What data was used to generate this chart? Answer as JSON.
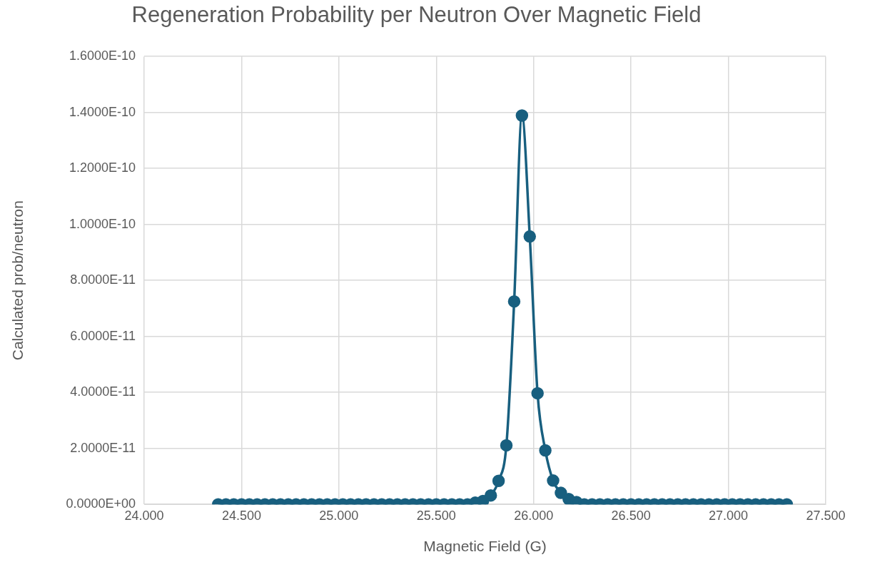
{
  "chart_data": {
    "type": "line",
    "title": "Regeneration Probability per Neutron Over Magnetic Field",
    "xlabel": "Magnetic Field (G)",
    "ylabel": "Calculated prob/neutron",
    "x": [
      24.38,
      24.42,
      24.46,
      24.5,
      24.54,
      24.58,
      24.62,
      24.66,
      24.7,
      24.74,
      24.78,
      24.82,
      24.86,
      24.9,
      24.94,
      24.98,
      25.02,
      25.06,
      25.1,
      25.14,
      25.18,
      25.22,
      25.26,
      25.3,
      25.34,
      25.38,
      25.42,
      25.46,
      25.5,
      25.54,
      25.58,
      25.62,
      25.66,
      25.7,
      25.74,
      25.78,
      25.82,
      25.86,
      25.9,
      25.94,
      25.98,
      26.02,
      26.06,
      26.1,
      26.14,
      26.18,
      26.22,
      26.26,
      26.3,
      26.34,
      26.38,
      26.42,
      26.46,
      26.5,
      26.54,
      26.58,
      26.62,
      26.66,
      26.7,
      26.74,
      26.78,
      26.82,
      26.86,
      26.9,
      26.94,
      26.98,
      27.02,
      27.06,
      27.1,
      27.14,
      27.18,
      27.22,
      27.26,
      27.3
    ],
    "series": [
      {
        "color": "#185f7f",
        "values": [
          0,
          0,
          0,
          0,
          0,
          0,
          0,
          0,
          0,
          0,
          0,
          0,
          0,
          0,
          0,
          0,
          0,
          0,
          0,
          0,
          0,
          0,
          0,
          0,
          0,
          0,
          0,
          0,
          0,
          0,
          0,
          0,
          0,
          6e-13,
          1.2e-12,
          3.2e-12,
          8.4e-12,
          2.11e-11,
          7.25e-11,
          1.389e-10,
          9.57e-11,
          3.97e-11,
          1.93e-11,
          8.5e-12,
          4.1e-12,
          1.9e-12,
          8e-13,
          0,
          0,
          0,
          0,
          0,
          0,
          0,
          0,
          0,
          0,
          0,
          0,
          0,
          0,
          0,
          0,
          0,
          0,
          0,
          0,
          0,
          0,
          0,
          0,
          0,
          0,
          0
        ]
      }
    ],
    "xlim": [
      24,
      27.5
    ],
    "xticks": [
      {
        "value": 24,
        "label": "24.000"
      },
      {
        "value": 24.5,
        "label": "24.500"
      },
      {
        "value": 25,
        "label": "25.000"
      },
      {
        "value": 25.5,
        "label": "25.500"
      },
      {
        "value": 26,
        "label": "26.000"
      },
      {
        "value": 26.5,
        "label": "26.500"
      },
      {
        "value": 27,
        "label": "27.000"
      },
      {
        "value": 27.5,
        "label": "27.500"
      }
    ],
    "ylim": [
      0,
      1.6e-10
    ],
    "yticks": [
      {
        "value": 0,
        "label": "0.0000E+00"
      },
      {
        "value": 2e-11,
        "label": "2.0000E-11"
      },
      {
        "value": 4e-11,
        "label": "4.0000E-11"
      },
      {
        "value": 6e-11,
        "label": "6.0000E-11"
      },
      {
        "value": 8e-11,
        "label": "8.0000E-11"
      },
      {
        "value": 1e-10,
        "label": "1.0000E-10"
      },
      {
        "value": 1.2e-10,
        "label": "1.2000E-10"
      },
      {
        "value": 1.4e-10,
        "label": "1.4000E-10"
      },
      {
        "value": 1.6e-10,
        "label": "1.6000E-10"
      }
    ],
    "grid": true,
    "legend": false,
    "marker": "circle",
    "line_style": "solid"
  }
}
